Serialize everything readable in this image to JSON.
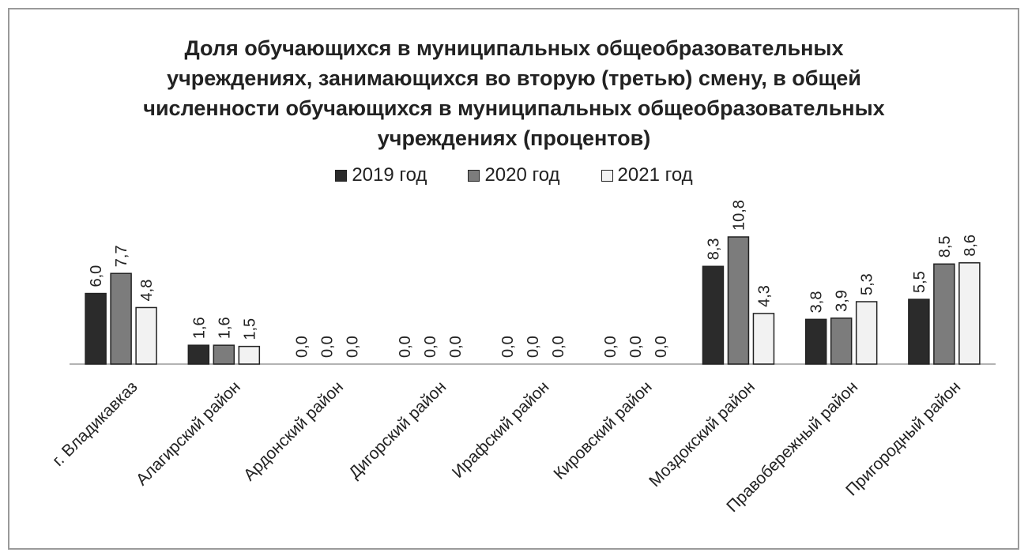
{
  "chart_data": {
    "type": "bar",
    "title_lines": [
      "Доля обучающихся в муниципальных общеобразовательных",
      "учреждениях, занимающихся во вторую (третью) смену, в общей",
      "численности обучающихся в муниципальных общеобразовательных",
      "учреждениях (процентов)"
    ],
    "categories": [
      "г. Владикавказ",
      "Алагирский район",
      "Ардонский район",
      "Дигорский район",
      "Ирафский район",
      "Кировский район",
      "Моздокский район",
      "Правобережный район",
      "Пригородный район"
    ],
    "series": [
      {
        "name": "2019 год",
        "color": "#2b2b2b",
        "values": [
          6.0,
          1.6,
          0.0,
          0.0,
          0.0,
          0.0,
          8.3,
          3.8,
          5.5
        ],
        "labels": [
          "6,0",
          "1,6",
          "0,0",
          "0,0",
          "0,0",
          "0,0",
          "8,3",
          "3,8",
          "5,5"
        ]
      },
      {
        "name": "2020 год",
        "color": "#7c7c7c",
        "values": [
          7.7,
          1.6,
          0.0,
          0.0,
          0.0,
          0.0,
          10.8,
          3.9,
          8.5
        ],
        "labels": [
          "7,7",
          "1,6",
          "0,0",
          "0,0",
          "0,0",
          "0,0",
          "10,8",
          "3,9",
          "8,5"
        ]
      },
      {
        "name": "2021 год",
        "color": "#f2f2f2",
        "values": [
          4.8,
          1.5,
          0.0,
          0.0,
          0.0,
          0.0,
          4.3,
          5.3,
          8.6
        ],
        "labels": [
          "4,8",
          "1,5",
          "0,0",
          "0,0",
          "0,0",
          "0,0",
          "4,3",
          "5,3",
          "8,6"
        ]
      }
    ],
    "ylim": [
      0,
      10.8
    ],
    "legend_position": "top-center",
    "grid": false,
    "bar_stroke_color": "#222222"
  }
}
